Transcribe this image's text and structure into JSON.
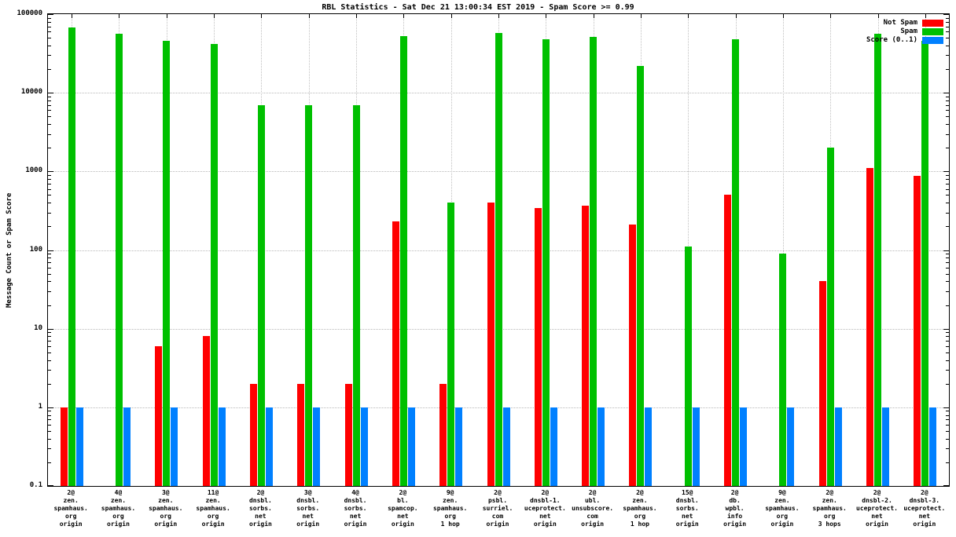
{
  "chart_data": {
    "type": "bar",
    "title": "RBL Statistics - Sat Dec 21 13:00:34 EST 2019 - Spam Score >= 0.99",
    "ylabel": "Message Count or Spam Score",
    "yscale": "log",
    "ylim": [
      0.1,
      100000
    ],
    "ytick_labels": [
      "0.1",
      "1",
      "10",
      "100",
      "1000",
      "10000",
      "100000"
    ],
    "grid": true,
    "legend_position": "top-right",
    "categories": [
      [
        "2@",
        "zen.",
        "spamhaus.",
        "org",
        "origin"
      ],
      [
        "4@",
        "zen.",
        "spamhaus.",
        "org",
        "origin"
      ],
      [
        "3@",
        "zen.",
        "spamhaus.",
        "org",
        "origin"
      ],
      [
        "11@",
        "zen.",
        "spamhaus.",
        "org",
        "origin"
      ],
      [
        "2@",
        "dnsbl.",
        "sorbs.",
        "net",
        "origin"
      ],
      [
        "3@",
        "dnsbl.",
        "sorbs.",
        "net",
        "origin"
      ],
      [
        "4@",
        "dnsbl.",
        "sorbs.",
        "net",
        "origin"
      ],
      [
        "2@",
        "bl.",
        "spamcop.",
        "net",
        "origin"
      ],
      [
        "9@",
        "zen.",
        "spamhaus.",
        "org",
        "1 hop"
      ],
      [
        "2@",
        "psbl.",
        "surriel.",
        "com",
        "origin"
      ],
      [
        "2@",
        "dnsbl-1.",
        "uceprotect.",
        "net",
        "origin"
      ],
      [
        "2@",
        "ubl.",
        "unsubscore.",
        "com",
        "origin"
      ],
      [
        "2@",
        "zen.",
        "spamhaus.",
        "org",
        "1 hop"
      ],
      [
        "15@",
        "dnsbl.",
        "sorbs.",
        "net",
        "origin"
      ],
      [
        "2@",
        "db.",
        "wpbl.",
        "info",
        "origin"
      ],
      [
        "9@",
        "zen.",
        "spamhaus.",
        "org",
        "origin"
      ],
      [
        "2@",
        "zen.",
        "spamhaus.",
        "org",
        "3 hops"
      ],
      [
        "2@",
        "dnsbl-2.",
        "uceprotect.",
        "net",
        "origin"
      ],
      [
        "2@",
        "dnsbl-3.",
        "uceprotect.",
        "net",
        "origin"
      ]
    ],
    "series": [
      {
        "name": "Not Spam",
        "color": "#ff0000",
        "values": [
          1,
          0,
          6,
          8,
          2,
          2,
          2,
          230,
          2,
          400,
          340,
          370,
          210,
          0,
          500,
          0,
          40,
          1100,
          870
        ]
      },
      {
        "name": "Spam",
        "color": "#00c000",
        "values": [
          68000,
          56000,
          46000,
          42000,
          7000,
          7000,
          7000,
          53000,
          400,
          58000,
          48000,
          51000,
          22000,
          110,
          48000,
          90,
          2000,
          56000,
          46000
        ]
      },
      {
        "name": "Score (0..1)",
        "color": "#0080ff",
        "values": [
          1,
          1,
          1,
          1,
          1,
          1,
          1,
          1,
          1,
          1,
          1,
          1,
          1,
          1,
          1,
          1,
          1,
          1,
          1
        ]
      }
    ]
  }
}
